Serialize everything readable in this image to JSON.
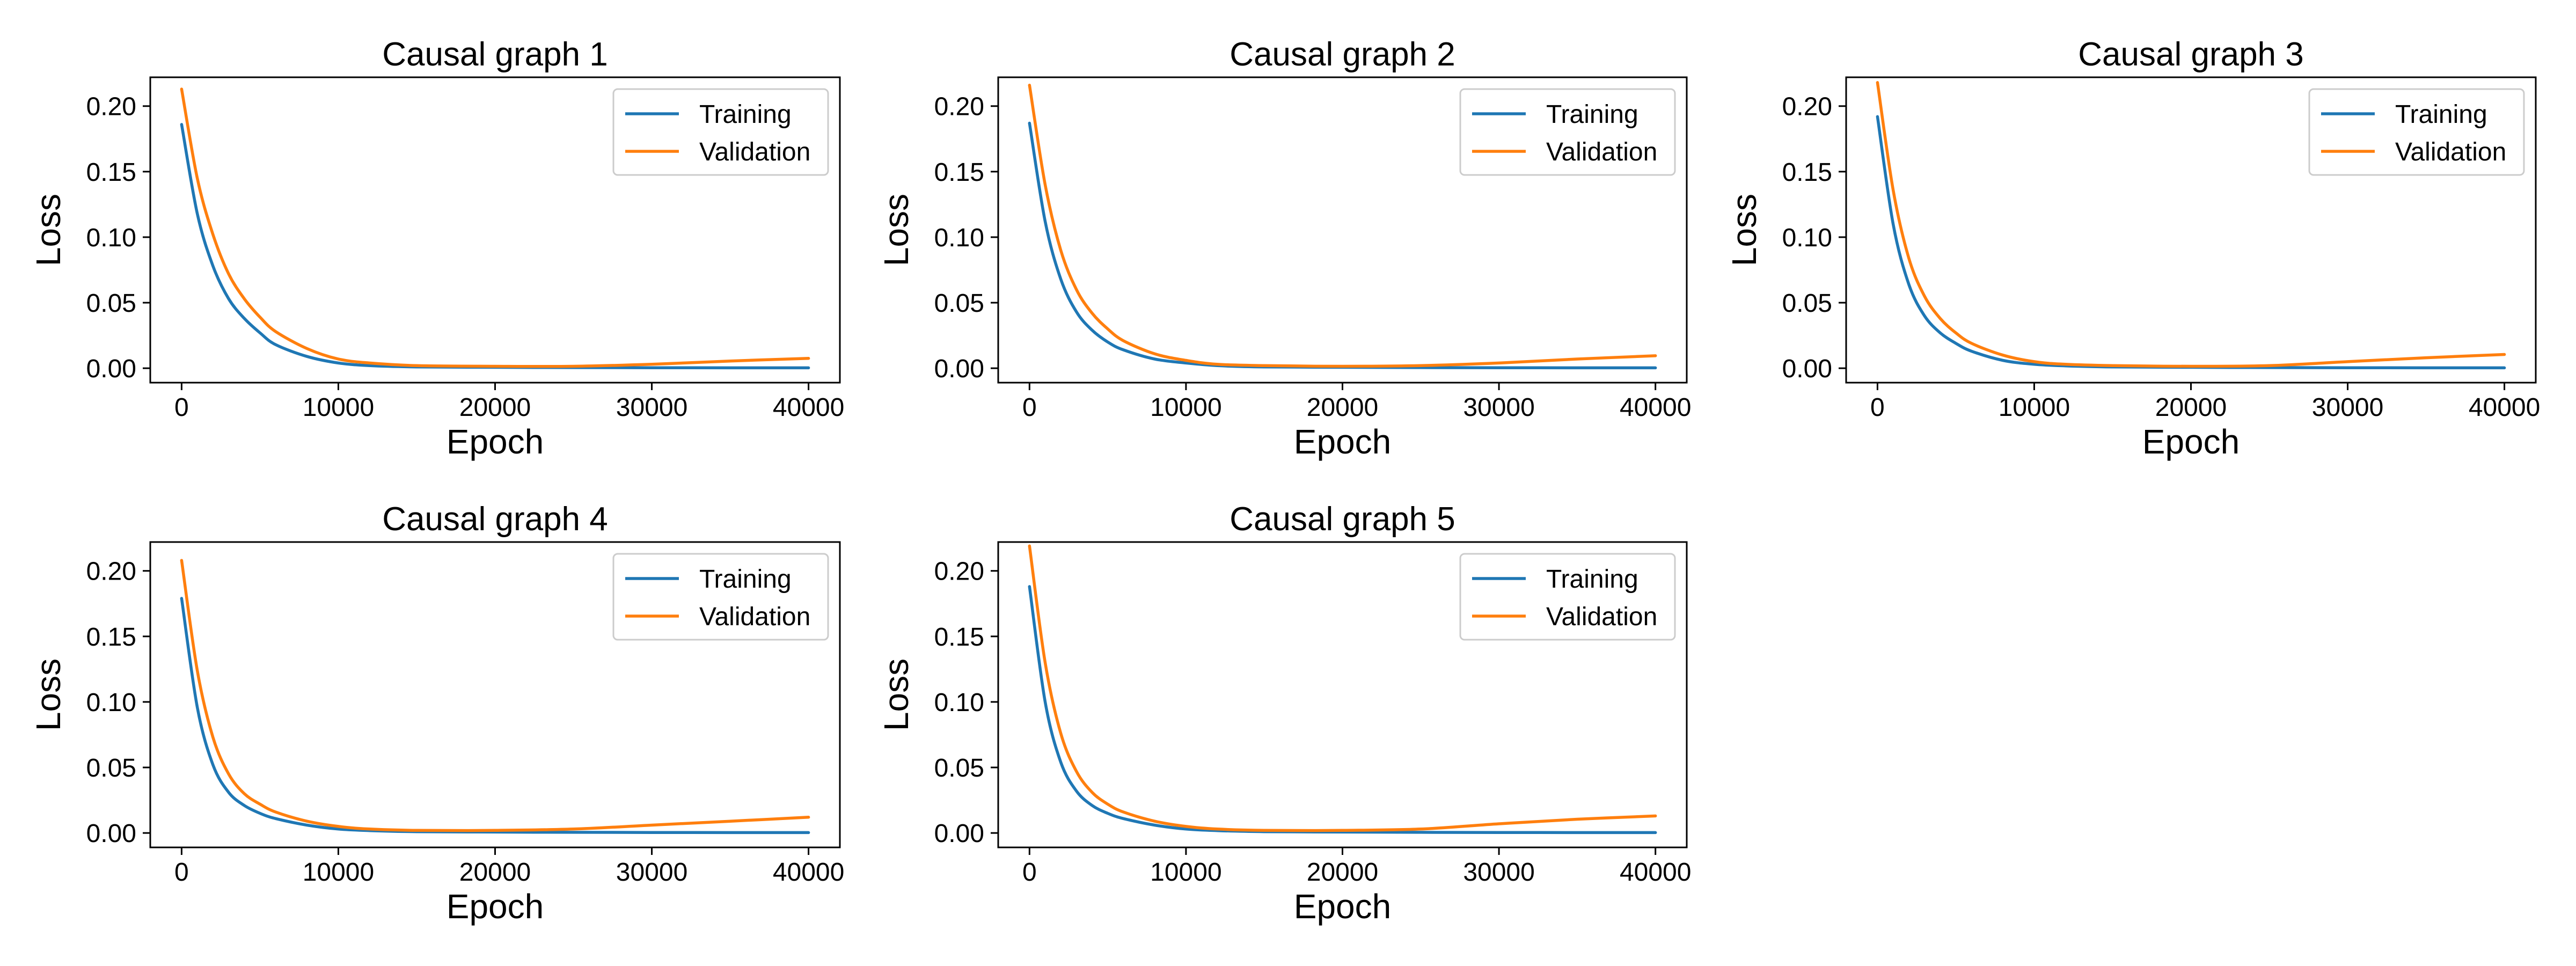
{
  "chart_data": [
    {
      "type": "line",
      "title": "Causal graph 1",
      "xlabel": "Epoch",
      "ylabel": "Loss",
      "xlim": [
        -2000,
        42000
      ],
      "ylim": [
        -0.011,
        0.222
      ],
      "xticks": [
        0,
        10000,
        20000,
        30000,
        40000
      ],
      "yticks": [
        0.0,
        0.05,
        0.1,
        0.15,
        0.2
      ],
      "legend_position": "top-right",
      "x": [
        0,
        1000,
        2000,
        3000,
        4000,
        5000,
        6000,
        8000,
        10000,
        12000,
        15000,
        20000,
        25000,
        30000,
        35000,
        40000
      ],
      "series": [
        {
          "name": "Training",
          "color": "#1f77b4",
          "values": [
            0.186,
            0.118,
            0.078,
            0.053,
            0.038,
            0.027,
            0.018,
            0.009,
            0.004,
            0.002,
            0.001,
            0.0007,
            0.0005,
            0.0004,
            0.0003,
            0.0003
          ]
        },
        {
          "name": "Validation",
          "color": "#ff7f0e",
          "values": [
            0.213,
            0.145,
            0.102,
            0.072,
            0.053,
            0.039,
            0.028,
            0.015,
            0.007,
            0.004,
            0.002,
            0.0015,
            0.0015,
            0.003,
            0.0055,
            0.0075
          ]
        }
      ]
    },
    {
      "type": "line",
      "title": "Causal graph 2",
      "xlabel": "Epoch",
      "ylabel": "Loss",
      "xlim": [
        -2000,
        42000
      ],
      "ylim": [
        -0.011,
        0.222
      ],
      "xticks": [
        0,
        10000,
        20000,
        30000,
        40000
      ],
      "yticks": [
        0.0,
        0.05,
        0.1,
        0.15,
        0.2
      ],
      "legend_position": "top-right",
      "x": [
        0,
        1000,
        2000,
        3000,
        4000,
        5000,
        6000,
        8000,
        10000,
        12000,
        15000,
        20000,
        25000,
        30000,
        35000,
        40000
      ],
      "series": [
        {
          "name": "Training",
          "color": "#1f77b4",
          "values": [
            0.187,
            0.112,
            0.068,
            0.043,
            0.029,
            0.02,
            0.014,
            0.007,
            0.004,
            0.002,
            0.001,
            0.0007,
            0.0005,
            0.0004,
            0.0003,
            0.0003
          ]
        },
        {
          "name": "Validation",
          "color": "#ff7f0e",
          "values": [
            0.216,
            0.14,
            0.09,
            0.06,
            0.042,
            0.03,
            0.021,
            0.011,
            0.006,
            0.003,
            0.002,
            0.0015,
            0.002,
            0.004,
            0.007,
            0.0095
          ]
        }
      ]
    },
    {
      "type": "line",
      "title": "Causal graph 3",
      "xlabel": "Epoch",
      "ylabel": "Loss",
      "xlim": [
        -2000,
        42000
      ],
      "ylim": [
        -0.011,
        0.222
      ],
      "xticks": [
        0,
        10000,
        20000,
        30000,
        40000
      ],
      "yticks": [
        0.0,
        0.05,
        0.1,
        0.15,
        0.2
      ],
      "legend_position": "top-right",
      "x": [
        0,
        1000,
        2000,
        3000,
        4000,
        5000,
        6000,
        8000,
        10000,
        12000,
        15000,
        20000,
        25000,
        30000,
        35000,
        40000
      ],
      "series": [
        {
          "name": "Training",
          "color": "#1f77b4",
          "values": [
            0.192,
            0.11,
            0.064,
            0.04,
            0.027,
            0.019,
            0.013,
            0.006,
            0.003,
            0.0018,
            0.001,
            0.0007,
            0.0005,
            0.0004,
            0.0003,
            0.0003
          ]
        },
        {
          "name": "Validation",
          "color": "#ff7f0e",
          "values": [
            0.218,
            0.136,
            0.084,
            0.055,
            0.038,
            0.027,
            0.019,
            0.01,
            0.005,
            0.003,
            0.002,
            0.0015,
            0.002,
            0.005,
            0.008,
            0.0105
          ]
        }
      ]
    },
    {
      "type": "line",
      "title": "Causal graph 4",
      "xlabel": "Epoch",
      "ylabel": "Loss",
      "xlim": [
        -2000,
        42000
      ],
      "ylim": [
        -0.011,
        0.222
      ],
      "xticks": [
        0,
        10000,
        20000,
        30000,
        40000
      ],
      "yticks": [
        0.0,
        0.05,
        0.1,
        0.15,
        0.2
      ],
      "legend_position": "top-right",
      "x": [
        0,
        1000,
        2000,
        3000,
        4000,
        5000,
        6000,
        8000,
        10000,
        12000,
        15000,
        20000,
        25000,
        30000,
        35000,
        40000
      ],
      "series": [
        {
          "name": "Training",
          "color": "#1f77b4",
          "values": [
            0.179,
            0.096,
            0.052,
            0.031,
            0.021,
            0.015,
            0.011,
            0.006,
            0.003,
            0.0018,
            0.001,
            0.0007,
            0.0005,
            0.0004,
            0.0003,
            0.0003
          ]
        },
        {
          "name": "Validation",
          "color": "#ff7f0e",
          "values": [
            0.208,
            0.124,
            0.073,
            0.045,
            0.03,
            0.022,
            0.016,
            0.009,
            0.005,
            0.003,
            0.002,
            0.002,
            0.003,
            0.006,
            0.009,
            0.012
          ]
        }
      ]
    },
    {
      "type": "line",
      "title": "Causal graph 5",
      "xlabel": "Epoch",
      "ylabel": "Loss",
      "xlim": [
        -2000,
        42000
      ],
      "ylim": [
        -0.011,
        0.222
      ],
      "xticks": [
        0,
        10000,
        20000,
        30000,
        40000
      ],
      "yticks": [
        0.0,
        0.05,
        0.1,
        0.15,
        0.2
      ],
      "legend_position": "top-right",
      "x": [
        0,
        1000,
        2000,
        3000,
        4000,
        5000,
        6000,
        8000,
        10000,
        12000,
        15000,
        20000,
        25000,
        30000,
        35000,
        40000
      ],
      "series": [
        {
          "name": "Training",
          "color": "#1f77b4",
          "values": [
            0.188,
            0.1,
            0.054,
            0.032,
            0.021,
            0.015,
            0.011,
            0.006,
            0.003,
            0.0018,
            0.001,
            0.0007,
            0.0005,
            0.0004,
            0.0003,
            0.0003
          ]
        },
        {
          "name": "Validation",
          "color": "#ff7f0e",
          "values": [
            0.219,
            0.13,
            0.076,
            0.047,
            0.031,
            0.022,
            0.016,
            0.009,
            0.005,
            0.003,
            0.002,
            0.002,
            0.003,
            0.007,
            0.0105,
            0.013
          ]
        }
      ]
    }
  ]
}
